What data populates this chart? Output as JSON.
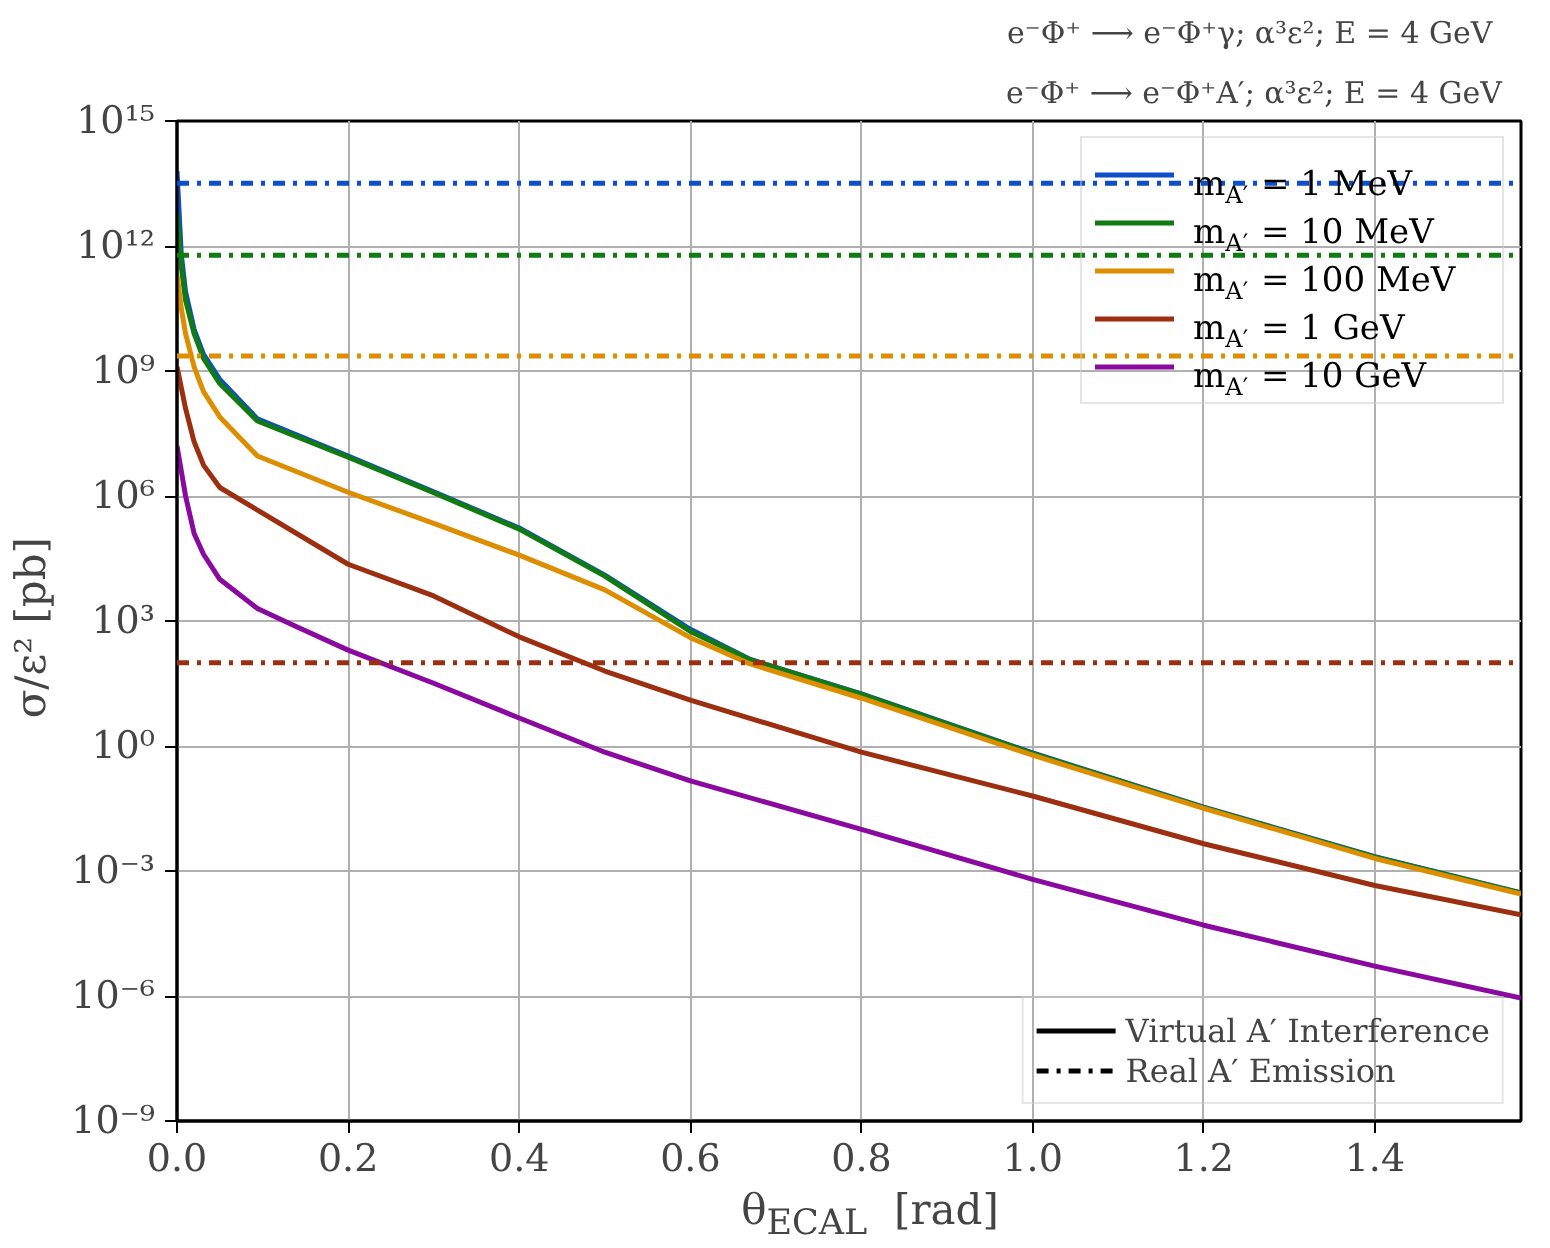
{
  "chart_data": {
    "type": "line",
    "title": "e⁻Φ⁺ ⟶ e⁻Φ⁺γ;   α³ε²;  E = 4 GeV",
    "subtitle": "e⁻Φ⁺ ⟶ e⁻Φ⁺A′;  α³ε²;  E = 4 GeV",
    "xlabel": "θ$_{ECAL}$   [rad]",
    "ylabel": "σ/ε²  [pb]",
    "log": "y",
    "grid": true,
    "legend": "top right",
    "line_style": "solid",
    "xlim": [
      0,
      1.5708
    ],
    "ylim": [
      1e-09,
      1000000000000000.0
    ],
    "xticks": [
      {
        "value": 0,
        "label": "0.0"
      },
      {
        "value": 0.2,
        "label": "0.2"
      },
      {
        "value": 0.4,
        "label": "0.4"
      },
      {
        "value": 0.6,
        "label": "0.6"
      },
      {
        "value": 0.8,
        "label": "0.8"
      },
      {
        "value": 1.0,
        "label": "1.0"
      },
      {
        "value": 1.2,
        "label": "1.2"
      },
      {
        "value": 1.4,
        "label": "1.4"
      }
    ],
    "yticks": [
      {
        "value": 1e-09,
        "label": "10⁻⁹"
      },
      {
        "value": 1e-06,
        "label": "10⁻⁶"
      },
      {
        "value": 0.001,
        "label": "10⁻³"
      },
      {
        "value": 1,
        "label": "10⁰"
      },
      {
        "value": 1000.0,
        "label": "10³"
      },
      {
        "value": 1000000.0,
        "label": "10⁶"
      },
      {
        "value": 1000000000.0,
        "label": "10⁹"
      },
      {
        "value": 1000000000000.0,
        "label": "10¹²"
      },
      {
        "value": 1000000000000000.0,
        "label": "10¹⁵"
      }
    ],
    "series": [
      {
        "name": "m$_{A′}$ = 1 MeV",
        "color": "#0c4fc8",
        "x": [
          0,
          0.005,
          0.01,
          0.02,
          0.031,
          0.05,
          0.094,
          0.2,
          0.3,
          0.4,
          0.5,
          0.6,
          0.67,
          0.8,
          1.0,
          1.2,
          1.4,
          1.5708
        ],
        "values": [
          63000000000000.0,
          630000000000.0,
          79000000000.0,
          10000000000.0,
          2500000000.0,
          630000000.0,
          71000000.0,
          9100000.0,
          1260000.0,
          170000.0,
          12600.0,
          631,
          120,
          17.8,
          0.68,
          0.034,
          0.0022,
          0.0003
        ]
      },
      {
        "name": "m$_{A′}$ = 10 MeV",
        "color": "#117a11",
        "x": [
          0,
          0.005,
          0.01,
          0.02,
          0.031,
          0.05,
          0.094,
          0.2,
          0.3,
          0.4,
          0.5,
          0.6,
          0.67,
          0.8,
          1.0,
          1.2,
          1.4,
          1.5708
        ],
        "values": [
          6300000000000.0,
          320000000000.0,
          50000000000.0,
          7900000000.0,
          2000000000.0,
          500000000.0,
          63000000.0,
          8500000.0,
          1200000.0,
          160000.0,
          12000.0,
          562,
          117,
          17.4,
          0.66,
          0.033,
          0.00214,
          0.000295
        ]
      },
      {
        "name": "m$_{A′}$ = 100 MeV",
        "color": "#dd8e00",
        "x": [
          0,
          0.005,
          0.01,
          0.02,
          0.031,
          0.05,
          0.094,
          0.2,
          0.3,
          0.4,
          0.5,
          0.6,
          0.67,
          0.8,
          1.0,
          1.2,
          1.4,
          1.5708
        ],
        "values": [
          200000000000.0,
          32000000000.0,
          7900000000.0,
          1260000000.0,
          320000000.0,
          79000000.0,
          9100000.0,
          1230000.0,
          220000.0,
          38000.0,
          5600.0,
          398,
          93,
          14,
          0.6,
          0.032,
          0.002,
          0.00028
        ]
      },
      {
        "name": "m$_{A′}$ = 1 GeV",
        "color": "#9c2f10",
        "x": [
          0,
          0.005,
          0.01,
          0.02,
          0.031,
          0.05,
          0.094,
          0.2,
          0.3,
          0.4,
          0.5,
          0.6,
          0.8,
          1.0,
          1.2,
          1.4,
          1.5708
        ],
        "values": [
          1260000000.0,
          400000000.0,
          126000000.0,
          20000000.0,
          5500000.0,
          1600000.0,
          460000.0,
          23000.0,
          4000.0,
          417,
          63,
          12.6,
          0.71,
          0.063,
          0.0045,
          0.00045,
          8.9e-05
        ]
      },
      {
        "name": "m$_{A′}$ = 10 GeV",
        "color": "#8a0aa0",
        "x": [
          0,
          0.01,
          0.02,
          0.031,
          0.05,
          0.094,
          0.136,
          0.2,
          0.3,
          0.4,
          0.5,
          0.6,
          0.8,
          1.0,
          1.2,
          1.4,
          1.5708
        ],
        "values": [
          16000000.0,
          1000000.0,
          126000.0,
          40000.0,
          10000.0,
          2000.0,
          794,
          200,
          32,
          4.7,
          0.71,
          0.145,
          0.01,
          0.00063,
          5e-05,
          5.2e-06,
          8.9e-07
        ]
      }
    ],
    "ref_lines": [
      {
        "axis": "y",
        "value": 32000000000000.0,
        "color": "#0c4fc8",
        "line_style": "dashdot"
      },
      {
        "axis": "y",
        "value": 600000000000.0,
        "color": "#117a11",
        "line_style": "dashdot"
      },
      {
        "axis": "y",
        "value": 2300000000.0,
        "color": "#dd8e00",
        "line_style": "dashdot"
      },
      {
        "axis": "y",
        "value": 100,
        "color": "#9c2f10",
        "line_style": "dashdot"
      }
    ],
    "annotations": [
      "Virtual A′ Interference",
      "Real A′ Emission"
    ]
  }
}
